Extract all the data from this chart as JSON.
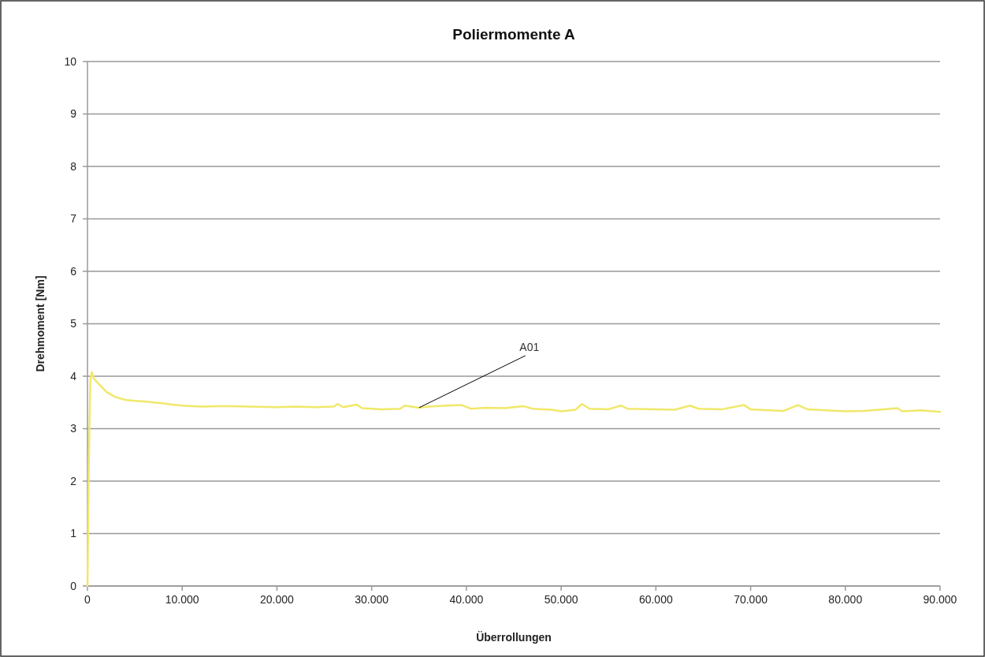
{
  "chart_data": {
    "type": "line",
    "title": "Poliermomente A",
    "xlabel": "Überrollungen",
    "ylabel": "Drehmoment [Nm]",
    "xlim": [
      0,
      90000
    ],
    "ylim": [
      0,
      10
    ],
    "xticks": [
      0,
      {
        "value": 10000,
        "label": "10.000"
      },
      {
        "value": 20000,
        "label": "20.000"
      },
      {
        "value": 30000,
        "label": "30.000"
      },
      {
        "value": 40000,
        "label": "40.000"
      },
      {
        "value": 50000,
        "label": "50.000"
      },
      {
        "value": 60000,
        "label": "60.000"
      },
      {
        "value": 70000,
        "label": "70.000"
      },
      {
        "value": 80000,
        "label": "80.000"
      },
      {
        "value": 90000,
        "label": "90.000"
      }
    ],
    "yticks": [
      0,
      1,
      2,
      3,
      4,
      5,
      6,
      7,
      8,
      9,
      10
    ],
    "grid": "y",
    "marker": "none",
    "line_style": "solid",
    "annotations": [
      {
        "text": "A01",
        "x": 35000,
        "y": 3.4
      }
    ],
    "series": [
      {
        "color": "#f0e86a",
        "x": [
          0,
          150,
          300,
          450,
          700,
          1200,
          2000,
          3000,
          4000,
          5000,
          6000,
          7000,
          8000,
          9000,
          10000,
          12000,
          14000,
          15000,
          17000,
          20000,
          22000,
          24000,
          26000,
          26400,
          27000,
          28400,
          29000,
          31000,
          33000,
          33500,
          35000,
          36000,
          38000,
          39500,
          40500,
          42000,
          44000,
          46000,
          47000,
          49000,
          50000,
          51500,
          52200,
          53000,
          55000,
          56300,
          57000,
          60000,
          62000,
          63600,
          64500,
          67000,
          69300,
          70000,
          72000,
          73500,
          75000,
          76000,
          78000,
          80000,
          82000,
          85500,
          86000,
          88000,
          90000
        ],
        "values": [
          0,
          2.4,
          3.9,
          4.08,
          3.95,
          3.85,
          3.7,
          3.6,
          3.55,
          3.53,
          3.52,
          3.5,
          3.48,
          3.46,
          3.44,
          3.42,
          3.43,
          3.43,
          3.42,
          3.41,
          3.42,
          3.41,
          3.42,
          3.47,
          3.41,
          3.46,
          3.39,
          3.37,
          3.38,
          3.44,
          3.4,
          3.42,
          3.44,
          3.45,
          3.38,
          3.4,
          3.39,
          3.43,
          3.38,
          3.36,
          3.33,
          3.36,
          3.47,
          3.38,
          3.37,
          3.44,
          3.38,
          3.37,
          3.36,
          3.44,
          3.38,
          3.37,
          3.45,
          3.37,
          3.35,
          3.34,
          3.45,
          3.37,
          3.35,
          3.33,
          3.34,
          3.39,
          3.33,
          3.35,
          3.32
        ]
      }
    ]
  }
}
